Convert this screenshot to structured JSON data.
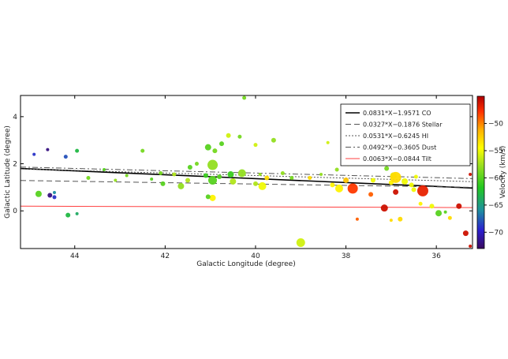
{
  "chart_data": {
    "type": "scatter",
    "xlabel": "Galactic Longitude (degree)",
    "ylabel": "Galactic Latitude (degree)",
    "xlim": [
      45.2,
      35.2
    ],
    "ylim": [
      -1.6,
      4.9
    ],
    "x_ticks": [
      44,
      42,
      40,
      38,
      36
    ],
    "y_ticks": [
      0,
      2,
      4
    ],
    "x_tick_labels": [
      "44",
      "42",
      "40",
      "38",
      "36"
    ],
    "y_tick_labels": [
      "0",
      "2",
      "4"
    ],
    "grid": false,
    "legend_position": "top-right",
    "colorbar": {
      "label": "Velocity (km/s)",
      "range": [
        -73,
        -45
      ],
      "ticks": [
        -50,
        -55,
        -60,
        -65,
        -70
      ],
      "tick_labels": [
        "−50",
        "−55",
        "−60",
        "−65",
        "−70"
      ],
      "colormap": [
        "#3a0a5e",
        "#2b1fd0",
        "#1e8fa0",
        "#22c820",
        "#9ee020",
        "#ffff00",
        "#ffb000",
        "#ff3000",
        "#b00000"
      ]
    },
    "series": [
      {
        "name": "0.0831*X−1.9571 CO",
        "style": "solid",
        "color": "#000000",
        "width": 1.6,
        "x": [
          45.2,
          35.2
        ],
        "y": [
          1.8,
          0.97
        ]
      },
      {
        "name": "0.0327*X−0.1876  Stellar",
        "style": "dashed",
        "color": "#555555",
        "width": 1,
        "x": [
          45.2,
          35.2
        ],
        "y": [
          1.29,
          1.0
        ]
      },
      {
        "name": "0.0531*X−0.6245 HI",
        "style": "dotted",
        "color": "#555555",
        "width": 1,
        "x": [
          45.2,
          35.2
        ],
        "y": [
          1.78,
          1.24
        ]
      },
      {
        "name": "0.0492*X−0.3605 Dust",
        "style": "dashdot",
        "color": "#555555",
        "width": 1,
        "x": [
          45.2,
          35.2
        ],
        "y": [
          1.86,
          1.37
        ]
      },
      {
        "name": "0.0063*X−0.0844 Tilt",
        "style": "solid",
        "color": "#ff4040",
        "width": 1,
        "x": [
          45.2,
          35.2
        ],
        "y": [
          0.2,
          0.14
        ]
      }
    ],
    "points": [
      {
        "x": 44.8,
        "y": 0.72,
        "v": -60,
        "s": 4
      },
      {
        "x": 44.55,
        "y": 0.66,
        "v": -72,
        "s": 3
      },
      {
        "x": 44.45,
        "y": 0.58,
        "v": -69,
        "s": 2.5
      },
      {
        "x": 44.45,
        "y": 0.78,
        "v": -66,
        "s": 2
      },
      {
        "x": 44.6,
        "y": 2.6,
        "v": -72,
        "s": 2
      },
      {
        "x": 44.2,
        "y": 2.3,
        "v": -68,
        "s": 2.5
      },
      {
        "x": 44.9,
        "y": 2.4,
        "v": -69,
        "s": 2
      },
      {
        "x": 43.95,
        "y": 2.55,
        "v": -63,
        "s": 2.5
      },
      {
        "x": 44.15,
        "y": -0.18,
        "v": -63,
        "s": 3
      },
      {
        "x": 43.95,
        "y": -0.12,
        "v": -64,
        "s": 2
      },
      {
        "x": 43.7,
        "y": 1.4,
        "v": -59,
        "s": 2.5
      },
      {
        "x": 43.35,
        "y": 1.75,
        "v": -60,
        "s": 2
      },
      {
        "x": 43.1,
        "y": 1.3,
        "v": -58,
        "s": 2
      },
      {
        "x": 42.85,
        "y": 1.5,
        "v": -59,
        "s": 2
      },
      {
        "x": 42.5,
        "y": 2.55,
        "v": -59,
        "s": 2.5
      },
      {
        "x": 42.3,
        "y": 1.35,
        "v": -60,
        "s": 2
      },
      {
        "x": 42.05,
        "y": 1.15,
        "v": -60,
        "s": 3
      },
      {
        "x": 42.1,
        "y": 1.6,
        "v": -59,
        "s": 2.5
      },
      {
        "x": 41.8,
        "y": 1.55,
        "v": -57,
        "s": 2.5
      },
      {
        "x": 41.65,
        "y": 1.05,
        "v": -58,
        "s": 4
      },
      {
        "x": 41.45,
        "y": 1.85,
        "v": -60,
        "s": 3
      },
      {
        "x": 41.3,
        "y": 2.0,
        "v": -59,
        "s": 2.5
      },
      {
        "x": 41.5,
        "y": 1.3,
        "v": -57,
        "s": 3
      },
      {
        "x": 41.1,
        "y": 1.5,
        "v": -61,
        "s": 3
      },
      {
        "x": 41.05,
        "y": 2.7,
        "v": -60,
        "s": 4
      },
      {
        "x": 40.9,
        "y": 2.55,
        "v": -59,
        "s": 3
      },
      {
        "x": 40.95,
        "y": 1.95,
        "v": -58,
        "s": 6.5
      },
      {
        "x": 40.95,
        "y": 1.3,
        "v": -60,
        "s": 5.5
      },
      {
        "x": 40.8,
        "y": 1.45,
        "v": -60,
        "s": 3
      },
      {
        "x": 40.75,
        "y": 2.85,
        "v": -60,
        "s": 3
      },
      {
        "x": 40.6,
        "y": 3.2,
        "v": -56,
        "s": 3
      },
      {
        "x": 40.35,
        "y": 3.15,
        "v": -59,
        "s": 2.5
      },
      {
        "x": 40.55,
        "y": 1.55,
        "v": -61,
        "s": 4
      },
      {
        "x": 40.5,
        "y": 1.25,
        "v": -57,
        "s": 4
      },
      {
        "x": 40.3,
        "y": 1.6,
        "v": -58,
        "s": 5
      },
      {
        "x": 40.25,
        "y": 4.8,
        "v": -59,
        "s": 2.5
      },
      {
        "x": 40.0,
        "y": 2.8,
        "v": -56,
        "s": 2.5
      },
      {
        "x": 40.0,
        "y": 1.15,
        "v": -57,
        "s": 3
      },
      {
        "x": 39.85,
        "y": 1.05,
        "v": -55,
        "s": 5
      },
      {
        "x": 39.75,
        "y": 1.4,
        "v": -53,
        "s": 3
      },
      {
        "x": 39.9,
        "y": 1.55,
        "v": -58,
        "s": 2
      },
      {
        "x": 40.95,
        "y": 0.55,
        "v": -54,
        "s": 4
      },
      {
        "x": 41.05,
        "y": 0.6,
        "v": -60,
        "s": 3
      },
      {
        "x": 39.6,
        "y": 3.0,
        "v": -58,
        "s": 3
      },
      {
        "x": 39.4,
        "y": 1.6,
        "v": -58,
        "s": 2.5
      },
      {
        "x": 39.2,
        "y": 1.4,
        "v": -59,
        "s": 2.5
      },
      {
        "x": 39.0,
        "y": -1.35,
        "v": -56,
        "s": 5.5
      },
      {
        "x": 38.8,
        "y": 1.4,
        "v": -53,
        "s": 2.5
      },
      {
        "x": 38.55,
        "y": 1.55,
        "v": -58,
        "s": 2
      },
      {
        "x": 38.4,
        "y": 2.9,
        "v": -56,
        "s": 2
      },
      {
        "x": 38.3,
        "y": 1.1,
        "v": -54,
        "s": 3
      },
      {
        "x": 38.2,
        "y": 1.75,
        "v": -58,
        "s": 2.5
      },
      {
        "x": 38.15,
        "y": 0.95,
        "v": -54,
        "s": 5
      },
      {
        "x": 38.0,
        "y": 1.3,
        "v": -52,
        "s": 3.5
      },
      {
        "x": 37.85,
        "y": 0.95,
        "v": -48,
        "s": 6.5
      },
      {
        "x": 37.75,
        "y": -0.35,
        "v": -49,
        "s": 2
      },
      {
        "x": 37.95,
        "y": 2.0,
        "v": -54,
        "s": 3
      },
      {
        "x": 37.7,
        "y": 2.6,
        "v": -55,
        "s": 2.5
      },
      {
        "x": 37.55,
        "y": 2.15,
        "v": -55,
        "s": 3
      },
      {
        "x": 37.45,
        "y": 0.7,
        "v": -49,
        "s": 3
      },
      {
        "x": 37.4,
        "y": 1.3,
        "v": -55,
        "s": 3
      },
      {
        "x": 37.35,
        "y": 2.35,
        "v": -55,
        "s": 3
      },
      {
        "x": 37.15,
        "y": 0.12,
        "v": -46,
        "s": 4.5
      },
      {
        "x": 37.1,
        "y": 1.8,
        "v": -59,
        "s": 3
      },
      {
        "x": 37.0,
        "y": -0.4,
        "v": -53,
        "s": 2
      },
      {
        "x": 36.95,
        "y": 1.5,
        "v": -56,
        "s": 4
      },
      {
        "x": 37.0,
        "y": 1.2,
        "v": -54,
        "s": 3
      },
      {
        "x": 36.9,
        "y": 0.8,
        "v": -46,
        "s": 3.5
      },
      {
        "x": 36.9,
        "y": 1.42,
        "v": -53,
        "s": 7
      },
      {
        "x": 36.8,
        "y": -0.35,
        "v": -53,
        "s": 3
      },
      {
        "x": 36.7,
        "y": 1.25,
        "v": -55,
        "s": 4
      },
      {
        "x": 36.55,
        "y": 1.1,
        "v": -55,
        "s": 3
      },
      {
        "x": 36.5,
        "y": 0.9,
        "v": -55,
        "s": 3
      },
      {
        "x": 36.45,
        "y": 1.45,
        "v": -55,
        "s": 2.5
      },
      {
        "x": 36.3,
        "y": 0.85,
        "v": -47,
        "s": 7
      },
      {
        "x": 36.35,
        "y": 0.3,
        "v": -54,
        "s": 2.5
      },
      {
        "x": 36.1,
        "y": 0.2,
        "v": -55,
        "s": 3
      },
      {
        "x": 35.95,
        "y": -0.1,
        "v": -60,
        "s": 4
      },
      {
        "x": 35.7,
        "y": -0.3,
        "v": -53,
        "s": 2.5
      },
      {
        "x": 35.8,
        "y": -0.05,
        "v": -60,
        "s": 2
      },
      {
        "x": 35.5,
        "y": 0.2,
        "v": -46,
        "s": 3.5
      },
      {
        "x": 35.35,
        "y": -0.95,
        "v": -46,
        "s": 3.5
      },
      {
        "x": 35.25,
        "y": -1.5,
        "v": -46,
        "s": 2
      },
      {
        "x": 35.25,
        "y": 1.55,
        "v": -46,
        "s": 2
      }
    ]
  }
}
